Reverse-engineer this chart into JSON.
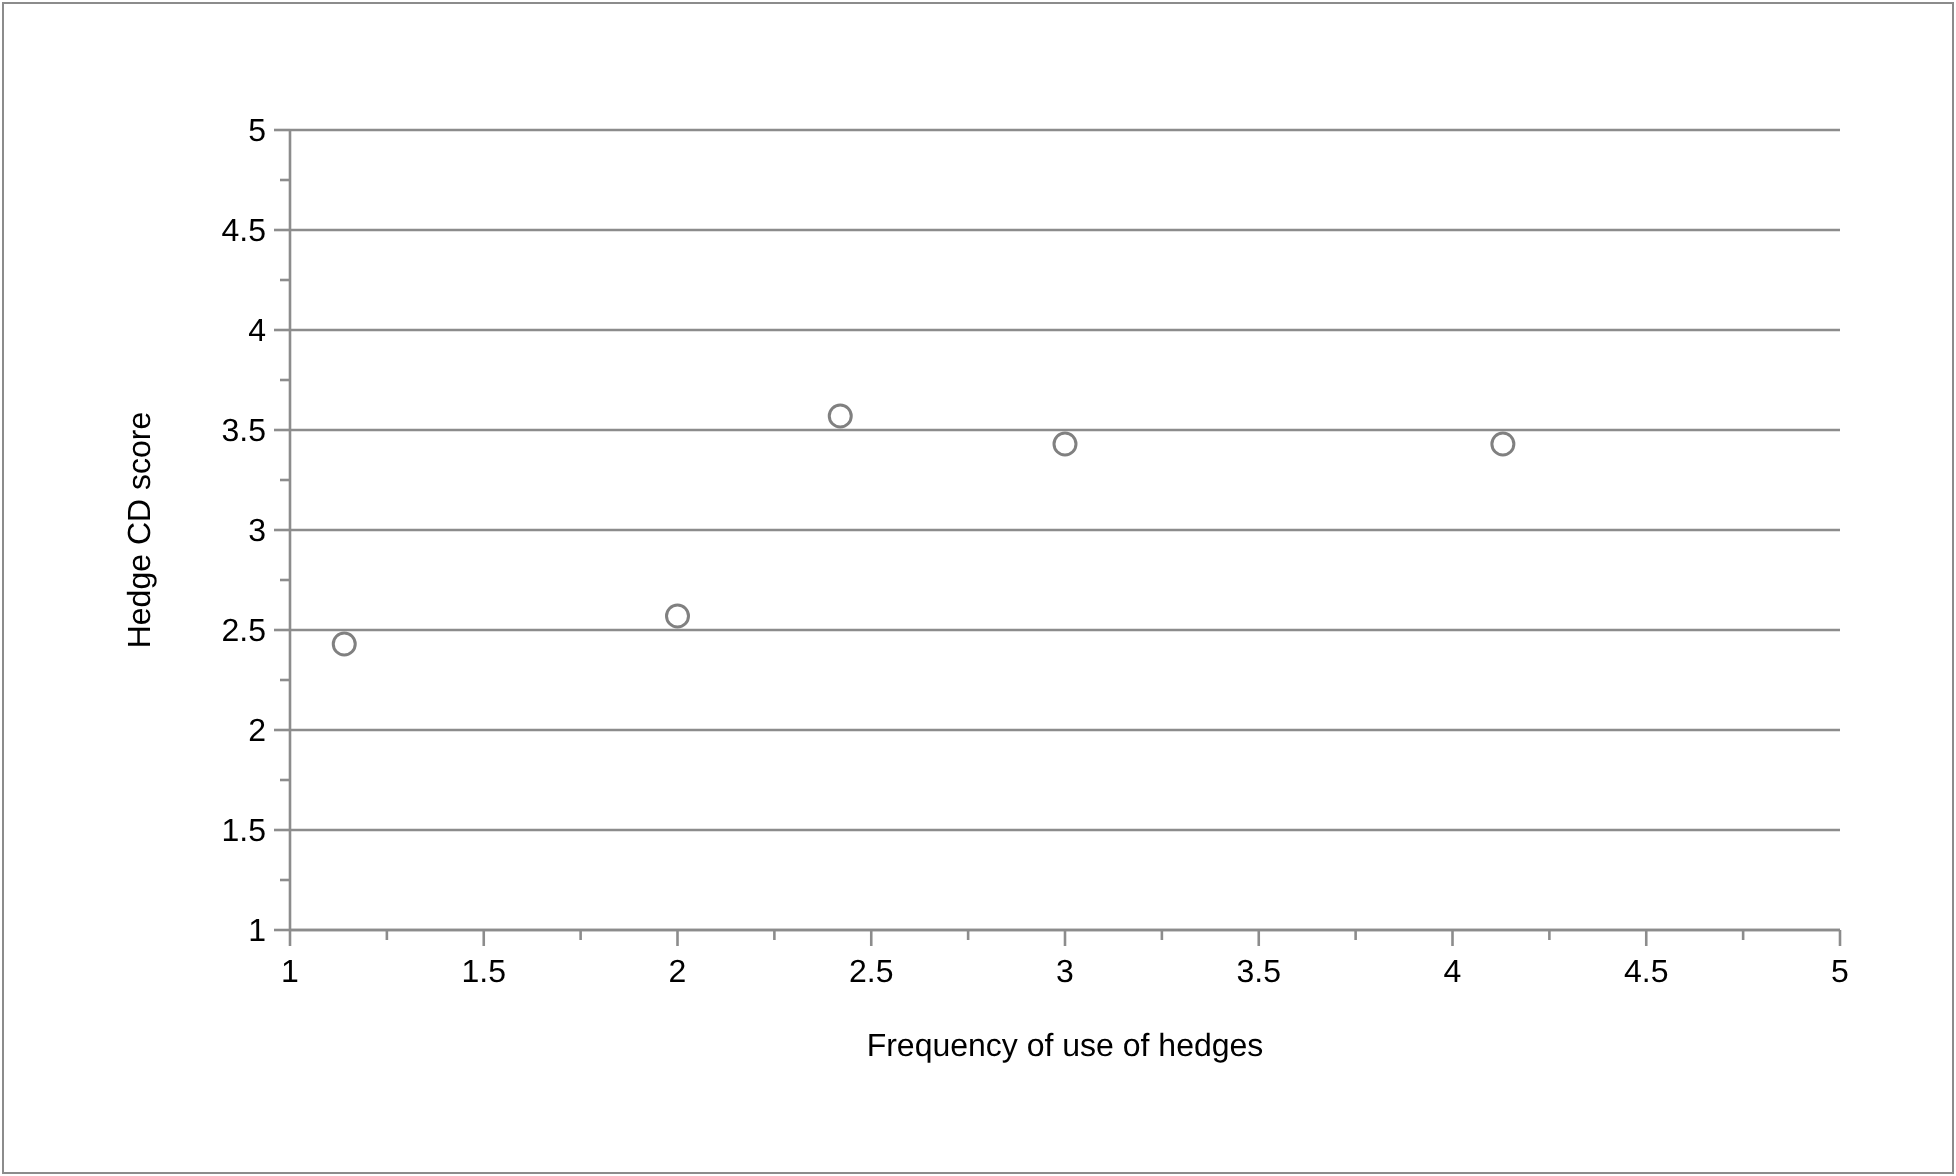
{
  "chart_data": {
    "type": "scatter",
    "xlabel": "Frequency of use of hedges",
    "ylabel": "Hedge CD score",
    "x": [
      1.14,
      2.0,
      2.42,
      3.0,
      4.13
    ],
    "series": [
      {
        "color": "#808080",
        "values": [
          2.43,
          2.57,
          3.57,
          3.43,
          3.43
        ]
      }
    ],
    "xlim": [
      1,
      5
    ],
    "xticks": [
      1,
      1.5,
      2,
      2.5,
      3,
      3.5,
      4,
      4.5,
      5
    ],
    "ylim": [
      1,
      5
    ],
    "yticks": [
      1,
      1.5,
      2,
      2.5,
      3,
      3.5,
      4,
      4.5,
      5
    ],
    "grid": "y",
    "marker": "circle"
  }
}
